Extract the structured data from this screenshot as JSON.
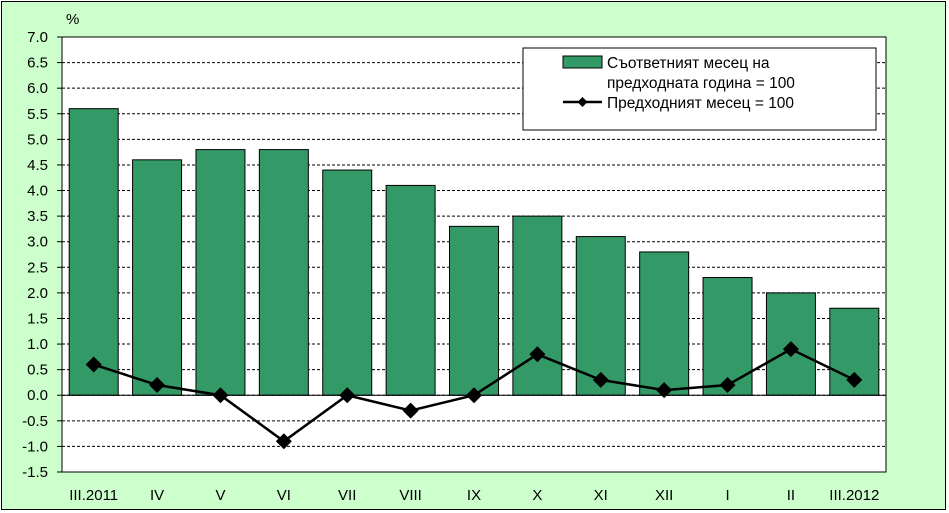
{
  "chart_data": {
    "type": "bar",
    "unit_label": "%",
    "categories": [
      "III.2011",
      "IV",
      "V",
      "VI",
      "VII",
      "VIII",
      "IX",
      "X",
      "XI",
      "XII",
      "I",
      "II",
      "III.2012"
    ],
    "series": [
      {
        "name_lines": [
          "Съответният месец на",
          "предходната година = 100"
        ],
        "kind": "bar",
        "values": [
          5.6,
          4.6,
          4.8,
          4.8,
          4.4,
          4.1,
          3.3,
          3.5,
          3.1,
          2.8,
          2.3,
          2.0,
          1.7
        ]
      },
      {
        "name": "Предходният месец = 100",
        "kind": "line",
        "values": [
          0.6,
          0.2,
          0.0,
          -0.9,
          0.0,
          -0.3,
          0.0,
          0.8,
          0.3,
          0.1,
          0.2,
          0.9,
          0.3
        ]
      }
    ],
    "y_ticks": [
      "7.0",
      "6.5",
      "6.0",
      "5.5",
      "5.0",
      "4.5",
      "4.0",
      "3.5",
      "3.0",
      "2.5",
      "2.0",
      "1.5",
      "1.0",
      "0.5",
      "0.0",
      "-0.5",
      "-1.0",
      "-1.5"
    ],
    "ylim": [
      -1.5,
      7.0
    ],
    "grid": true,
    "legend_position": "top-right",
    "colors": {
      "bar": "#339966",
      "line": "#000000",
      "plot_bg": "#ffffff",
      "chart_bg": "#ccffcc"
    }
  }
}
